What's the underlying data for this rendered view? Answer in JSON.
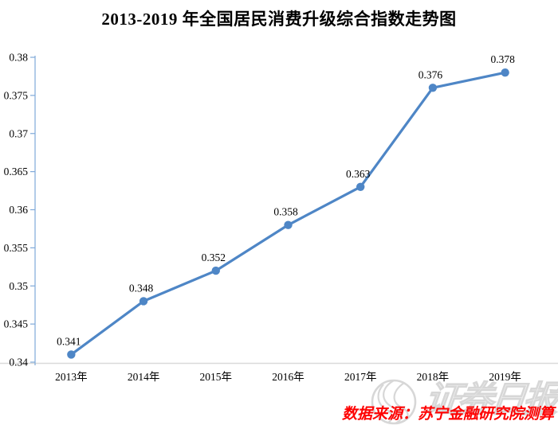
{
  "title": "2013-2019 年全国居民消费升级综合指数走势图",
  "chart_data": {
    "type": "line",
    "title": "2013-2019 年全国居民消费升级综合指数走势图",
    "categories": [
      "2013年",
      "2014年",
      "2015年",
      "2016年",
      "2017年",
      "2018年",
      "2019年"
    ],
    "series": [
      {
        "name": "全国居民消费升级综合指数",
        "values": [
          0.341,
          0.348,
          0.352,
          0.358,
          0.363,
          0.376,
          0.378
        ]
      }
    ],
    "data_labels": [
      "0.341",
      "0.348",
      "0.352",
      "0.358",
      "0.363",
      "0.376",
      "0.378"
    ],
    "xlabel": "",
    "ylabel": "",
    "ylim": [
      0.34,
      0.38
    ],
    "yticks": [
      0.34,
      0.345,
      0.35,
      0.355,
      0.36,
      0.365,
      0.37,
      0.375,
      0.38
    ],
    "ytick_labels": [
      "0.34",
      "0.345",
      "0.35",
      "0.355",
      "0.36",
      "0.365",
      "0.37",
      "0.375",
      "0.38"
    ],
    "grid": false,
    "legend": false,
    "colors": {
      "line": "#4e86c6",
      "marker": "#4e86c6",
      "y_axis": "#7fa9d9",
      "x_baseline": "#d9d9d9",
      "text": "#000000"
    }
  },
  "watermark": {
    "logo": "swirl-globe-icon",
    "text": "证券日报",
    "color": "#d7d7d7"
  },
  "source": {
    "text": "数据来源：苏宁金融研究院测算",
    "color": "#fe0000"
  }
}
